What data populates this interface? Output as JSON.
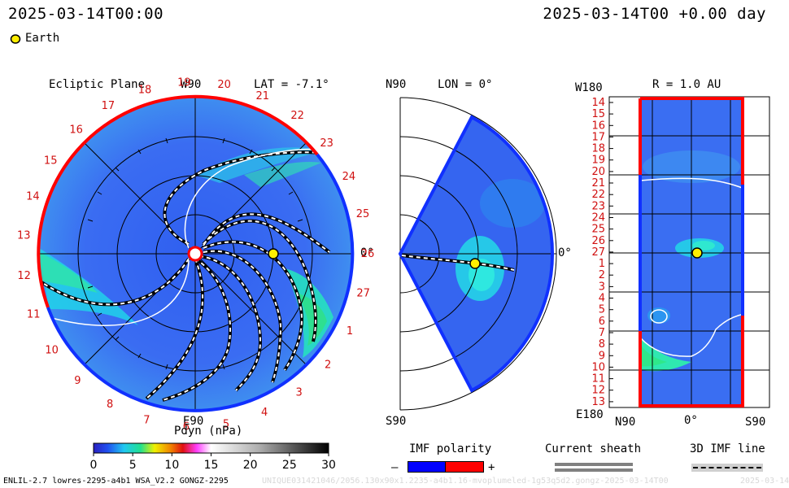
{
  "header": {
    "datetime_left": "2025-03-14T00:00",
    "datetime_right": "2025-03-14T00 +0.00 day"
  },
  "legend": {
    "earth_label": "Earth"
  },
  "ecliptic": {
    "title": "Ecliptic Plane",
    "lat_label": "LAT = -7.1°",
    "top_label": "W90",
    "bottom_label": "E90",
    "right_label": "0°",
    "sector_numbers": [
      "1",
      "2",
      "3",
      "4",
      "5",
      "6",
      "7",
      "8",
      "9",
      "10",
      "11",
      "12",
      "13",
      "14",
      "15",
      "16",
      "17",
      "18",
      "19",
      "20",
      "21",
      "22",
      "23",
      "24",
      "25",
      "26",
      "27"
    ]
  },
  "meridional": {
    "title": "LON = 0°",
    "top_label": "N90",
    "bottom_label": "S90",
    "right_label": "0°"
  },
  "map": {
    "title": "R = 1.0 AU",
    "top_label": "W180",
    "bottom_label": "E180",
    "x_labels": [
      "N90",
      "0°",
      "S90"
    ],
    "y_labels": [
      "14",
      "15",
      "16",
      "17",
      "18",
      "19",
      "20",
      "21",
      "22",
      "23",
      "24",
      "25",
      "26",
      "27",
      "1",
      "2",
      "3",
      "4",
      "5",
      "6",
      "7",
      "8",
      "9",
      "10",
      "11",
      "12",
      "13"
    ]
  },
  "colorbar": {
    "title": "Pdyn (nPa)",
    "ticks": [
      "0",
      "5",
      "10",
      "15",
      "20",
      "25",
      "30"
    ],
    "range": [
      0,
      30
    ]
  },
  "imf": {
    "title": "IMF polarity",
    "minus": "–",
    "plus": "+",
    "negative_color": "#0000ff",
    "positive_color": "#ff0000"
  },
  "sheath": {
    "title": "Current sheath"
  },
  "imfline": {
    "title": "3D IMF line"
  },
  "footer": {
    "model": "ENLIL-2.7 lowres-2295-a4b1 WSA_V2.2 GONGZ-2295",
    "faint": "UNIQUE031421046/2056.130x90x1.2235-a4b1.16-mvoplumeled-1g53q5d2.gongz-2025-03-14T00",
    "faint_right": "2025-03-14"
  },
  "chart_data": {
    "type": "heatmap",
    "quantity": "Pdyn (nPa)",
    "color_range": [
      0,
      30
    ],
    "earth": {
      "lon_deg": 0,
      "r_au": 1.0,
      "lat_deg": -7.1
    }
  }
}
